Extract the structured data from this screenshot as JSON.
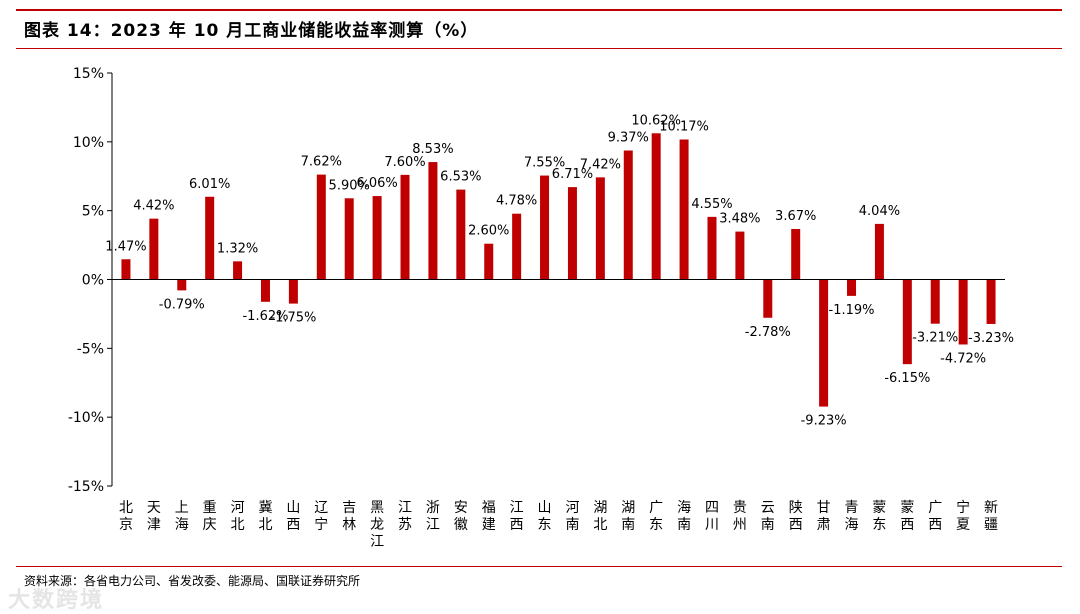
{
  "figure": {
    "title": "图表 14：2023 年 10 月工商业储能收益率测算（%）",
    "source": "资料来源：各省电力公司、省发改委、能源局、国联证券研究所",
    "watermark": "大数跨境"
  },
  "colors": {
    "bar": "#c00000",
    "rule": "#c00000",
    "axis": "#000000",
    "text": "#000000"
  },
  "chart_data": {
    "type": "bar",
    "title": "2023 年 10 月工商业储能收益率测算（%）",
    "xlabel": "",
    "ylabel": "",
    "ylim": [
      -15,
      15
    ],
    "yticks": [
      15,
      10,
      5,
      0,
      -5,
      -10,
      -15
    ],
    "ytick_labels": [
      "15%",
      "10%",
      "5%",
      "0%",
      "-5%",
      "-10%",
      "-15%"
    ],
    "categories": [
      "北京",
      "天津",
      "上海",
      "重庆",
      "河北",
      "冀北",
      "山西",
      "辽宁",
      "吉林",
      "黑龙江",
      "江苏",
      "浙江",
      "安徽",
      "福建",
      "江西",
      "山东",
      "河南",
      "湖北",
      "湖南",
      "广东",
      "海南",
      "四川",
      "贵州",
      "云南",
      "陕西",
      "甘肃",
      "青海",
      "蒙东",
      "蒙西",
      "广西",
      "宁夏",
      "新疆"
    ],
    "values": [
      1.47,
      4.42,
      -0.79,
      6.01,
      1.32,
      -1.62,
      -1.75,
      7.62,
      5.9,
      6.06,
      7.6,
      8.53,
      6.53,
      2.6,
      4.78,
      7.55,
      6.71,
      7.42,
      9.37,
      10.62,
      10.17,
      4.55,
      3.48,
      -2.78,
      3.67,
      -9.23,
      -1.19,
      4.04,
      -6.15,
      -3.21,
      -4.72,
      -3.23
    ],
    "data_labels": [
      "1.47%",
      "4.42%",
      "-0.79%",
      "6.01%",
      "1.32%",
      "-1.62%",
      "-1.75%",
      "7.62%",
      "5.90%",
      "6.06%",
      "7.60%",
      "8.53%",
      "6.53%",
      "2.60%",
      "4.78%",
      "7.55%",
      "6.71%",
      "7.42%",
      "9.37%",
      "10.62%",
      "10.17%",
      "4.55%",
      "3.48%",
      "-2.78%",
      "3.67%",
      "-9.23%",
      "-1.19%",
      "4.04%",
      "-6.15%",
      "-3.21%",
      "-4.72%",
      "-3.23%"
    ],
    "grid": false,
    "legend": "none"
  }
}
